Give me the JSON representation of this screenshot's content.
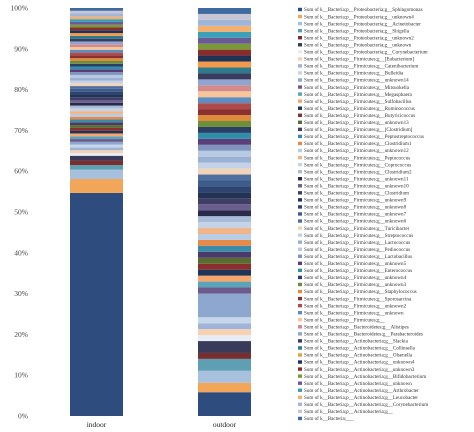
{
  "chart_data": {
    "type": "bar",
    "stacked": true,
    "orientation": "vertical",
    "categories": [
      "indoor",
      "outdoor"
    ],
    "ylim": [
      0,
      100
    ],
    "yticks": [
      "0%",
      "10%",
      "20%",
      "30%",
      "40%",
      "50%",
      "60%",
      "70%",
      "80%",
      "90%",
      "100%"
    ],
    "grid": false,
    "legend_position": "right",
    "series": [
      {
        "name": "Sum of k__Bacteria;p__Proteobacteria;g__Sphingomonas",
        "color": "#2e4c7e",
        "values": [
          24.0,
          2.0
        ]
      },
      {
        "name": "Sum of k__Bacteria;p__Proteobacteria;g__unknown4",
        "color": "#f2a65a",
        "values": [
          1.5,
          0.8
        ]
      },
      {
        "name": "Sum of k__Bacteria;p__Proteobacteria;g__Acinetobacter",
        "color": "#a7c0dd",
        "values": [
          1.0,
          1.0
        ]
      },
      {
        "name": "Sum of k__Bacteria;p__Proteobacteria;g__Shigella",
        "color": "#5e9fb3",
        "values": [
          0.5,
          1.0
        ]
      },
      {
        "name": "Sum of k__Bacteria;p__Proteobacteria;g__unknown2",
        "color": "#7a2f2f",
        "values": [
          0.5,
          0.5
        ]
      },
      {
        "name": "Sum of k__Bacteria;p__Proteobacteria;g__unknown",
        "color": "#3a3a5a",
        "values": [
          0.5,
          1.0
        ]
      },
      {
        "name": "Sum of k__Bacteria;p__Proteobacteria;g__Corynebacterium",
        "color": "#e8ecf4",
        "values": [
          0.3,
          0.5
        ]
      },
      {
        "name": "Sum of k__Bacteria;p__Firmicutes;g__[Eubacterium]",
        "color": "#f7d2b0",
        "values": [
          0.3,
          0.5
        ]
      },
      {
        "name": "Sum of k__Bacteria;p__Firmicutes;g__Catenibacterium",
        "color": "#9fb4d8",
        "values": [
          0.3,
          0.5
        ]
      },
      {
        "name": "Sum of k__Bacteria;p__Firmicutes;g__Bulleidia",
        "color": "#c7d7ea",
        "values": [
          0.3,
          0.5
        ]
      },
      {
        "name": "Sum of k__Bacteria;p__Firmicutes;g__unknown14",
        "color": "#8ea7cf",
        "values": [
          0.3,
          2.0
        ]
      },
      {
        "name": "Sum of k__Bacteria;p__Firmicutes;g__Mitsuokella",
        "color": "#6f5a8c",
        "values": [
          0.3,
          0.5
        ]
      },
      {
        "name": "Sum of k__Bacteria;p__Firmicutes;g__Megasphaera",
        "color": "#5aa3b8",
        "values": [
          0.3,
          0.5
        ]
      },
      {
        "name": "Sum of k__Bacteria;p__Firmicutes;g__Sulfobacillus",
        "color": "#f7a76b",
        "values": [
          0.3,
          0.5
        ]
      },
      {
        "name": "Sum of k__Bacteria;p__Firmicutes;g__Ruminococcus",
        "color": "#1f3557",
        "values": [
          0.3,
          0.5
        ]
      },
      {
        "name": "Sum of k__Bacteria;p__Firmicutes;g__Butyricicoccus",
        "color": "#8b2e2e",
        "values": [
          0.3,
          0.5
        ]
      },
      {
        "name": "Sum of k__Bacteria;p__Firmicutes;g__unknown13",
        "color": "#5a6b2f",
        "values": [
          0.3,
          0.5
        ]
      },
      {
        "name": "Sum of k__Bacteria;p__Firmicutes;g__[Clostridium]",
        "color": "#4a3a6a",
        "values": [
          0.3,
          0.5
        ]
      },
      {
        "name": "Sum of k__Bacteria;p__Firmicutes;g__Peptostreptococcus",
        "color": "#3a8aa8",
        "values": [
          0.3,
          0.5
        ]
      },
      {
        "name": "Sum of k__Bacteria;p__Firmicutes;g__Clostridium1",
        "color": "#e58a4a",
        "values": [
          0.3,
          0.5
        ]
      },
      {
        "name": "Sum of k__Bacteria;p__Firmicutes;g__unknown12",
        "color": "#b8cde4",
        "values": [
          0.3,
          0.5
        ]
      },
      {
        "name": "Sum of k__Bacteria;p__Firmicutes;g__Peptococcus",
        "color": "#f0b487",
        "values": [
          0.3,
          0.5
        ]
      },
      {
        "name": "Sum of k__Bacteria;p__Firmicutes;g__Coprococcus",
        "color": "#c6d3e6",
        "values": [
          0.3,
          0.5
        ]
      },
      {
        "name": "Sum of k__Bacteria;p__Firmicutes;g__Clostridium2",
        "color": "#a8bcd9",
        "values": [
          0.3,
          0.5
        ]
      },
      {
        "name": "Sum of k__Bacteria;p__Firmicutes;g__unknown11",
        "color": "#2c2a4a",
        "values": [
          0.3,
          0.5
        ]
      },
      {
        "name": "Sum of k__Bacteria;p__Firmicutes;g__unknown10",
        "color": "#6a5f8f",
        "values": [
          0.3,
          0.5
        ]
      },
      {
        "name": "Sum of k__Bacteria;p__Firmicutes;g__Clostridium",
        "color": "#3f3f66",
        "values": [
          0.3,
          0.5
        ]
      },
      {
        "name": "Sum of k__Bacteria;p__Firmicutes;g__unknown9",
        "color": "#223355",
        "values": [
          0.3,
          0.5
        ]
      },
      {
        "name": "Sum of k__Bacteria;p__Firmicutes;g__unknown8",
        "color": "#2e4470",
        "values": [
          0.3,
          0.5
        ]
      },
      {
        "name": "Sum of k__Bacteria;p__Firmicutes;g__unknown7",
        "color": "#3d5d8a",
        "values": [
          0.3,
          0.5
        ]
      },
      {
        "name": "Sum of k__Bacteria;p__Firmicutes;g__unknown6",
        "color": "#4e6fa0",
        "values": [
          0.3,
          0.5
        ]
      },
      {
        "name": "Sum of k__Bacteria;p__Firmicutes;g__Turicibacter",
        "color": "#f3d3b8",
        "values": [
          0.3,
          0.5
        ]
      },
      {
        "name": "Sum of k__Bacteria;p__Firmicutes;g__Streptococcus",
        "color": "#c4d2e8",
        "values": [
          0.3,
          0.5
        ]
      },
      {
        "name": "Sum of k__Bacteria;p__Firmicutes;g__Lactococcus",
        "color": "#9ab0d4",
        "values": [
          0.3,
          0.5
        ]
      },
      {
        "name": "Sum of k__Bacteria;p__Firmicutes;g__Pediococcus",
        "color": "#b8c9e2",
        "values": [
          0.3,
          0.5
        ]
      },
      {
        "name": "Sum of k__Bacteria;p__Firmicutes;g__Lactobacillus",
        "color": "#7f95c0",
        "values": [
          0.3,
          0.5
        ]
      },
      {
        "name": "Sum of k__Bacteria;p__Firmicutes;g__unknown5",
        "color": "#5a3f7a",
        "values": [
          0.3,
          0.5
        ]
      },
      {
        "name": "Sum of k__Bacteria;p__Firmicutes;g__Enterococcus",
        "color": "#2f8fa8",
        "values": [
          0.3,
          0.5
        ]
      },
      {
        "name": "Sum of k__Bacteria;p__Firmicutes;g__unknown4",
        "color": "#2a3e66",
        "values": [
          0.3,
          0.5
        ]
      },
      {
        "name": "Sum of k__Bacteria;p__Firmicutes;g__unknown3",
        "color": "#6c8f3a",
        "values": [
          0.3,
          0.5
        ]
      },
      {
        "name": "Sum of k__Bacteria;p__Firmicutes;g__Staphylococcus",
        "color": "#e08a3c",
        "values": [
          0.3,
          0.5
        ]
      },
      {
        "name": "Sum of k__Bacteria;p__Firmicutes;g__Sporosarcina",
        "color": "#8a3030",
        "values": [
          0.3,
          0.5
        ]
      },
      {
        "name": "Sum of k__Bacteria;p__Firmicutes;g__unknown2",
        "color": "#b04a4a",
        "values": [
          0.3,
          0.5
        ]
      },
      {
        "name": "Sum of k__Bacteria;p__Firmicutes;g__unknown",
        "color": "#5d8cc0",
        "values": [
          0.3,
          0.5
        ]
      },
      {
        "name": "Sum of k__Bacteria;p__Firmicutes;g__",
        "color": "#f6c59a",
        "values": [
          0.3,
          0.5
        ]
      },
      {
        "name": "Sum of k__Bacteria;p__Bacteroidetes;g__Alistipes",
        "color": "#d48a8a",
        "values": [
          0.3,
          0.5
        ]
      },
      {
        "name": "Sum of k__Bacteria;p__Bacteroidetes;g__Parabacteroides",
        "color": "#8fa5cf",
        "values": [
          0.3,
          0.5
        ]
      },
      {
        "name": "Sum of k__Bacteria;p__Actinobacteria;g__Slackia",
        "color": "#3b3b5e",
        "values": [
          0.3,
          0.5
        ]
      },
      {
        "name": "Sum of k__Bacteria;p__Actinobacteria;g__Collinsella",
        "color": "#2c7a8c",
        "values": [
          0.3,
          0.5
        ]
      },
      {
        "name": "Sum of k__Bacteria;p__Actinobacteria;g__Olsenella",
        "color": "#f39a4a",
        "values": [
          0.3,
          0.5
        ]
      },
      {
        "name": "Sum of k__Bacteria;p__Actinobacteria;g__unknown4",
        "color": "#1e3358",
        "values": [
          0.3,
          0.5
        ]
      },
      {
        "name": "Sum of k__Bacteria;p__Actinobacteria;g__unknown3",
        "color": "#8b2c2c",
        "values": [
          0.3,
          0.5
        ]
      },
      {
        "name": "Sum of k__Bacteria;p__Actinobacteria;g__Bifidobacterium",
        "color": "#7a9a3a",
        "values": [
          0.3,
          0.5
        ]
      },
      {
        "name": "Sum of k__Bacteria;p__Actinobacteria;g__unknown",
        "color": "#6a5a96",
        "values": [
          0.3,
          0.5
        ]
      },
      {
        "name": "Sum of k__Bacteria;p__Actinobacteria;g__Arthrobacter",
        "color": "#3aa0b8",
        "values": [
          0.3,
          0.5
        ]
      },
      {
        "name": "Sum of k__Bacteria;p__Actinobacteria;g__Leucobacter",
        "color": "#f5b070",
        "values": [
          0.3,
          0.5
        ]
      },
      {
        "name": "Sum of k__Bacteria;p__Actinobacteria;g__Corynebacterium",
        "color": "#9fb6da",
        "values": [
          0.3,
          0.5
        ]
      },
      {
        "name": "Sum of k__Bacteria;p__Actinobacteria;g__",
        "color": "#c5c5d5",
        "values": [
          0.3,
          0.5
        ]
      },
      {
        "name": "Sum of k__Bacteria;___",
        "color": "#3e6aa0",
        "values": [
          0.3,
          0.5
        ]
      }
    ]
  }
}
